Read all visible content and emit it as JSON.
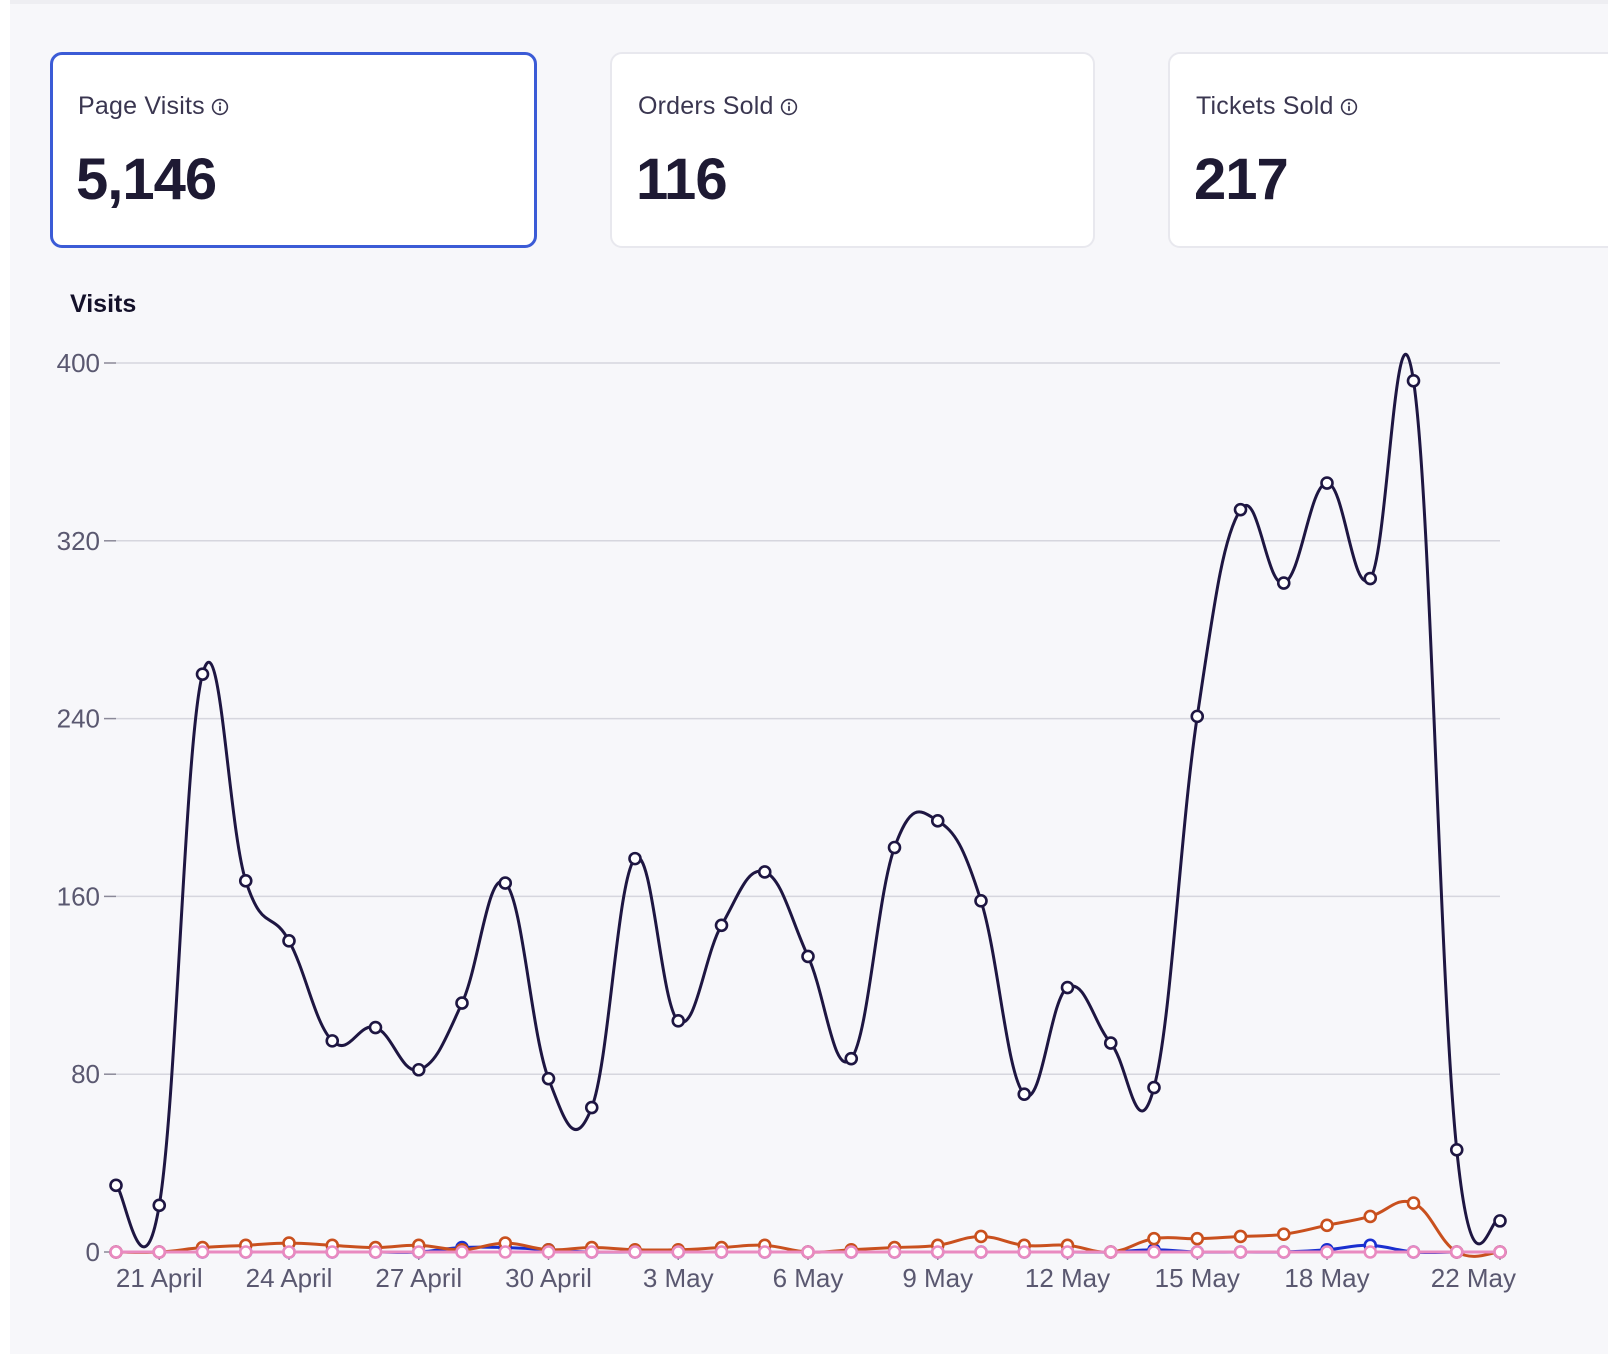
{
  "metrics": [
    {
      "label": "Page Visits",
      "value": "5,146",
      "selected": true,
      "icon": "info-icon"
    },
    {
      "label": "Orders Sold",
      "value": "116",
      "selected": false,
      "icon": "info-icon"
    },
    {
      "label": "Tickets Sold",
      "value": "217",
      "selected": false,
      "icon": "info-icon"
    }
  ],
  "colors": {
    "accent": "#3b5bd6",
    "visits": "#1e1642",
    "orange": "#c9501e",
    "blue": "#1a2fd0",
    "pink": "#e98ac0",
    "grid": "#d6d6de"
  },
  "chart_data": {
    "type": "line",
    "title": "Visits",
    "xlabel": "",
    "ylabel": "",
    "ylim": [
      0,
      400
    ],
    "yticks": [
      0,
      80,
      160,
      240,
      320,
      400
    ],
    "categories": [
      "20 April",
      "21 April",
      "22 April",
      "23 April",
      "24 April",
      "25 April",
      "26 April",
      "27 April",
      "28 April",
      "29 April",
      "30 April",
      "1 May",
      "2 May",
      "3 May",
      "4 May",
      "5 May",
      "6 May",
      "7 May",
      "8 May",
      "9 May",
      "10 May",
      "11 May",
      "12 May",
      "13 May",
      "14 May",
      "15 May",
      "16 May",
      "17 May",
      "18 May",
      "19 May",
      "20 May",
      "21 May",
      "22 May"
    ],
    "xtick_labels": [
      {
        "index": 1,
        "label": "21 April"
      },
      {
        "index": 4,
        "label": "24 April"
      },
      {
        "index": 7,
        "label": "27 April"
      },
      {
        "index": 10,
        "label": "30 April"
      },
      {
        "index": 13,
        "label": "3 May"
      },
      {
        "index": 16,
        "label": "6 May"
      },
      {
        "index": 19,
        "label": "9 May"
      },
      {
        "index": 22,
        "label": "12 May"
      },
      {
        "index": 25,
        "label": "15 May"
      },
      {
        "index": 28,
        "label": "18 May"
      },
      {
        "index": 32,
        "label": "22 May"
      }
    ],
    "grid": true,
    "series": [
      {
        "color": "#1e1642",
        "values": [
          30,
          21,
          260,
          167,
          140,
          95,
          101,
          82,
          112,
          166,
          78,
          65,
          177,
          104,
          147,
          171,
          133,
          87,
          182,
          194,
          158,
          71,
          119,
          94,
          74,
          241,
          334,
          301,
          346,
          303,
          392,
          46,
          14
        ]
      },
      {
        "color": "#c9501e",
        "values": [
          0,
          0,
          2,
          3,
          4,
          3,
          2,
          3,
          1,
          4,
          1,
          2,
          1,
          1,
          2,
          3,
          0,
          1,
          2,
          3,
          7,
          3,
          3,
          0,
          6,
          6,
          7,
          8,
          12,
          16,
          22,
          0,
          0
        ]
      },
      {
        "color": "#1a2fd0",
        "values": [
          0,
          0,
          0,
          0,
          0,
          0,
          0,
          0,
          2,
          2,
          1,
          0,
          0,
          0,
          0,
          0,
          0,
          0,
          0,
          0,
          0,
          0,
          0,
          0,
          1,
          0,
          0,
          0,
          1,
          3,
          0,
          0,
          0
        ]
      },
      {
        "color": "#e98ac0",
        "values": [
          0,
          0,
          0,
          0,
          0,
          0,
          0,
          0,
          0,
          0,
          0,
          0,
          0,
          0,
          0,
          0,
          0,
          0,
          0,
          0,
          0,
          0,
          0,
          0,
          0,
          0,
          0,
          0,
          0,
          0,
          0,
          0,
          0
        ]
      }
    ]
  }
}
